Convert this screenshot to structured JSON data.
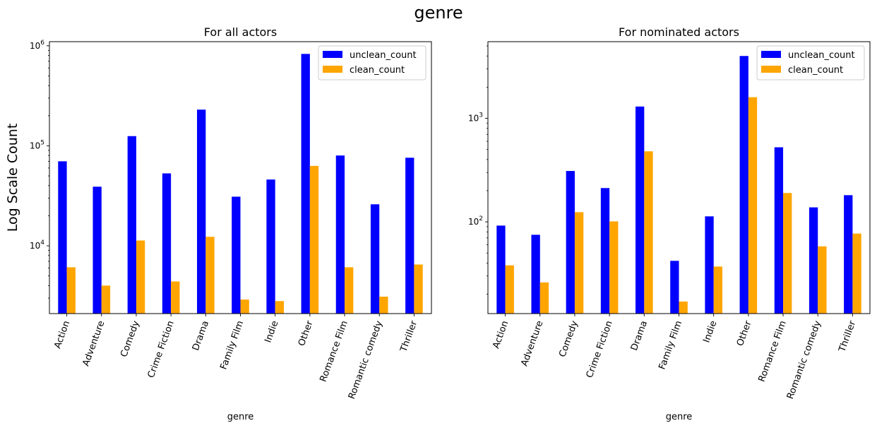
{
  "figure": {
    "title": "genre"
  },
  "colors": {
    "unclean": "#0000ff",
    "clean": "#ffa500"
  },
  "chart_data": [
    {
      "type": "bar",
      "title": "For all actors",
      "xlabel": "genre",
      "ylabel": "Log Scale Count",
      "yscale": "log",
      "ylim": [
        2100,
        1100000
      ],
      "yticks": [
        {
          "value": 10000,
          "base": "10",
          "exp": "4"
        },
        {
          "value": 100000,
          "base": "10",
          "exp": "5"
        },
        {
          "value": 1000000,
          "base": "10",
          "exp": "6"
        }
      ],
      "legend": "top-right",
      "categories": [
        "Action",
        "Adventure",
        "Comedy",
        "Crime Fiction",
        "Drama",
        "Family Film",
        "Indie",
        "Other",
        "Romance Film",
        "Romantic comedy",
        "Thriller"
      ],
      "series": [
        {
          "name": "unclean_count",
          "values": [
            70000,
            39000,
            125000,
            53000,
            230000,
            31000,
            46000,
            830000,
            80000,
            26000,
            76000
          ]
        },
        {
          "name": "clean_count",
          "values": [
            6100,
            4000,
            11300,
            4400,
            12300,
            2900,
            2800,
            63000,
            6100,
            3100,
            6500
          ]
        }
      ]
    },
    {
      "type": "bar",
      "title": "For nominated actors",
      "xlabel": "genre",
      "ylabel": "",
      "yscale": "log",
      "ylim": [
        13,
        5500
      ],
      "yticks": [
        {
          "value": 100,
          "base": "10",
          "exp": "2"
        },
        {
          "value": 1000,
          "base": "10",
          "exp": "3"
        }
      ],
      "legend": "top-right",
      "categories": [
        "Action",
        "Adventure",
        "Comedy",
        "Crime Fiction",
        "Drama",
        "Family Film",
        "Indie",
        "Other",
        "Romance Film",
        "Romantic comedy",
        "Thriller"
      ],
      "series": [
        {
          "name": "unclean_count",
          "values": [
            92,
            75,
            310,
            212,
            1300,
            42,
            113,
            4000,
            525,
            138,
            181
          ]
        },
        {
          "name": "clean_count",
          "values": [
            38,
            26,
            124,
            101,
            480,
            17,
            37,
            1600,
            190,
            58,
            77
          ]
        }
      ]
    }
  ]
}
